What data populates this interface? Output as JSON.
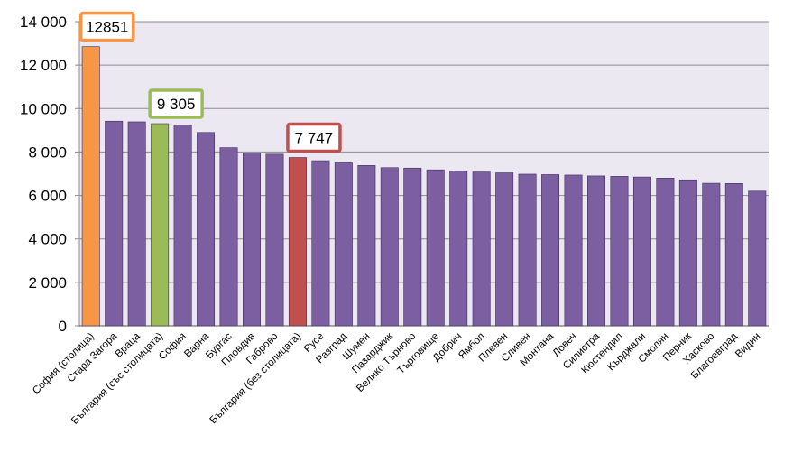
{
  "chart_data": {
    "type": "bar",
    "categories": [
      "София (столица)",
      "Стара Загора",
      "Враца",
      "България (със столицата)",
      "София",
      "Варна",
      "Бургас",
      "Пловдив",
      "Габрово",
      "България (без столицата)",
      "Русе",
      "Разград",
      "Шумен",
      "Пазарджик",
      "Велико Търново",
      "Търговище",
      "Добрич",
      "Ямбол",
      "Плевен",
      "Сливен",
      "Монтана",
      "Ловеч",
      "Силистра",
      "Кюстендил",
      "Кърджали",
      "Смолян",
      "Перник",
      "Хасково",
      "Благоевград",
      "Видин"
    ],
    "values": [
      12851,
      9420,
      9390,
      9305,
      9250,
      8900,
      8200,
      7950,
      7900,
      7747,
      7600,
      7500,
      7380,
      7280,
      7260,
      7180,
      7120,
      7080,
      7040,
      6980,
      6960,
      6940,
      6900,
      6880,
      6850,
      6800,
      6720,
      6560,
      6550,
      6200
    ],
    "ylim": [
      0,
      14000
    ],
    "yticks": [
      0,
      2000,
      4000,
      6000,
      8000,
      10000,
      12000,
      14000
    ],
    "ytick_labels": [
      "0",
      "2 000",
      "4 000",
      "6 000",
      "8 000",
      "10 000",
      "12 000",
      "14 000"
    ],
    "grid": true,
    "title": "",
    "xlabel": "",
    "ylabel": "",
    "default_color": "#7c5fa0",
    "highlights": [
      {
        "index": 0,
        "color": "#f79646",
        "label": "12851"
      },
      {
        "index": 3,
        "color": "#9bbb59",
        "label": "9 305"
      },
      {
        "index": 9,
        "color": "#c0504d",
        "label": "7 747"
      }
    ]
  },
  "colors": {
    "plot_background": "#ebe8f1",
    "gridline": "#8c8c8c",
    "bar_outline": "#3f2d5a"
  }
}
